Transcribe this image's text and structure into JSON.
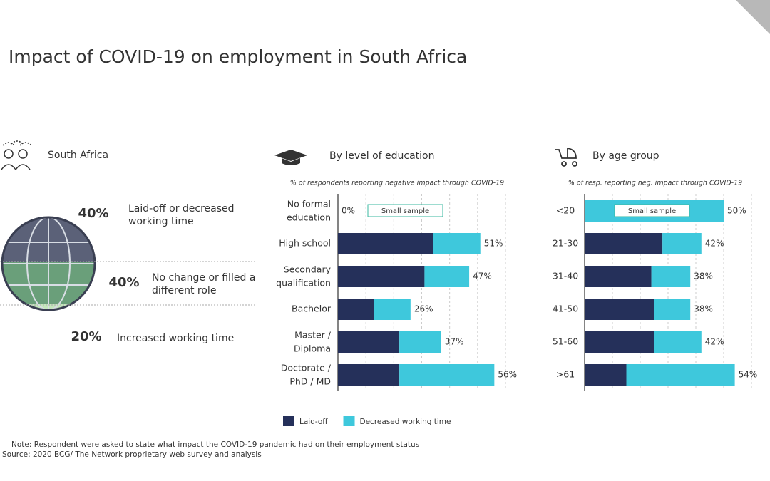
{
  "title": "Impact of COVID-19 on employment in South Africa",
  "summary": {
    "heading": "South Africa",
    "items": [
      {
        "label": "40%",
        "text": "Laid-off or decreased\nworking time"
      },
      {
        "label": "40%",
        "text": "No change or filled a\ndifferent role"
      },
      {
        "label": "20%",
        "text": "Increased working time"
      }
    ]
  },
  "chart_data": [
    {
      "type": "stacked_barh",
      "heading": "By level of education",
      "subtitle": "% of respondents reporting  negative impact through COVID-19",
      "annotation": "Small sample",
      "categories": [
        "No formal\neducation",
        "High school",
        "Secondary\nqualification",
        "Bachelor",
        "Master /\nDiploma",
        "Doctorate /\nPhD / MD"
      ],
      "series": [
        {
          "name": "Laid-off",
          "color": "#25305a",
          "values": [
            0,
            34,
            31,
            13,
            22,
            22
          ]
        },
        {
          "name": "Decreased working time",
          "color": "#3ec8dc",
          "values": [
            0,
            17,
            16,
            13,
            15,
            34
          ]
        }
      ],
      "totals": [
        0,
        51,
        47,
        26,
        37,
        56
      ],
      "total_labels": [
        "0%",
        "51%",
        "47%",
        "26%",
        "37%",
        "56%"
      ],
      "xlim": [
        0,
        60
      ],
      "xticks": [
        0,
        10,
        20,
        30,
        40,
        50,
        60
      ],
      "grid": true,
      "legend": "bottom"
    },
    {
      "type": "stacked_barh",
      "heading": "By age group",
      "subtitle": "% of resp. reporting  neg. impact through COVID-19",
      "annotation": "Small sample",
      "categories": [
        "<20",
        "21-30",
        "31-40",
        "41-50",
        "51-60",
        ">61"
      ],
      "series": [
        {
          "name": "Laid-off",
          "color": "#25305a",
          "values": [
            0,
            28,
            24,
            25,
            25,
            15
          ]
        },
        {
          "name": "Decreased working time",
          "color": "#3ec8dc",
          "values": [
            50,
            14,
            14,
            13,
            17,
            39
          ]
        }
      ],
      "totals": [
        50,
        42,
        38,
        38,
        42,
        54
      ],
      "total_labels": [
        "50%",
        "42%",
        "38%",
        "38%",
        "42%",
        "54%"
      ],
      "xlim": [
        0,
        60
      ],
      "xticks": [
        0,
        10,
        20,
        30,
        40,
        50,
        60
      ],
      "grid": true
    }
  ],
  "note": "Note: Respondent were asked to state what impact the COVID-19 pandemic had on their employment status",
  "source": "Source: 2020 BCG/ The Network proprietary web survey and analysis"
}
